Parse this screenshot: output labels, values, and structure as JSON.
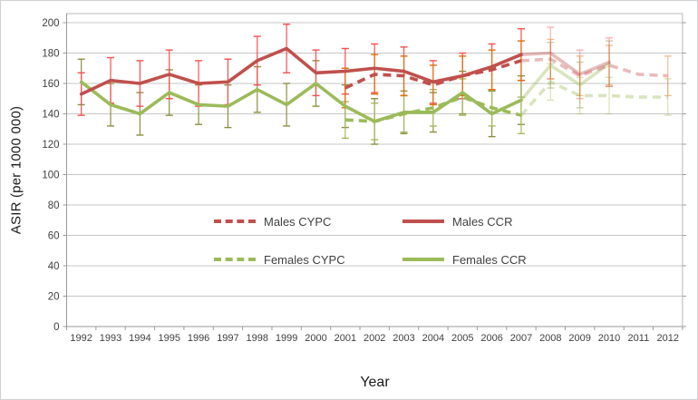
{
  "chart_data": {
    "type": "line",
    "title": "",
    "xlabel": "Year",
    "ylabel": "ASIR (per 1000 000)",
    "ylim": [
      0,
      200
    ],
    "ytick_step": 20,
    "yticks": [
      0,
      20,
      40,
      60,
      80,
      100,
      120,
      140,
      160,
      180,
      200
    ],
    "grid": true,
    "legend_position": "center",
    "x_categories": [
      1992,
      1993,
      1994,
      1995,
      1996,
      1997,
      1998,
      1999,
      2000,
      2001,
      2002,
      2003,
      2004,
      2005,
      2006,
      2007,
      2008,
      2009,
      2010,
      2011,
      2012
    ],
    "projection_opacity": 0.38,
    "series": [
      {
        "name": "Males CYPC",
        "style": "dashed",
        "color": "#c0504d",
        "error_bar_color": "#e36c0a",
        "observed": {
          "years": [
            2001,
            2002,
            2003,
            2004,
            2005,
            2006,
            2007
          ],
          "values": [
            157,
            166,
            165,
            159,
            165,
            169,
            175
          ],
          "err": [
            13,
            13,
            13,
            13,
            13,
            13,
            13
          ]
        },
        "projected": {
          "years": [
            2007,
            2008,
            2009,
            2010,
            2011,
            2012
          ],
          "values": [
            175,
            176,
            165,
            172,
            166,
            165
          ],
          "err": [
            0,
            13,
            13,
            13,
            0,
            13
          ]
        }
      },
      {
        "name": "Males CCR",
        "style": "solid",
        "color": "#c0504d",
        "error_bar_color": "#fb4d4d",
        "observed": {
          "years": [
            1992,
            1993,
            1994,
            1995,
            1996,
            1997,
            1998,
            1999,
            2000,
            2001,
            2002,
            2003,
            2004,
            2005,
            2006,
            2007
          ],
          "values": [
            153,
            162,
            160,
            166,
            160,
            161,
            175,
            183,
            167,
            168,
            170,
            168,
            161,
            165,
            171,
            179
          ],
          "err": [
            14,
            15,
            15,
            16,
            15,
            15,
            16,
            16,
            15,
            15,
            16,
            16,
            14,
            15,
            15,
            17
          ]
        },
        "projected": {
          "years": [
            2007,
            2008,
            2009,
            2010
          ],
          "values": [
            179,
            180,
            166,
            174
          ],
          "err": [
            0,
            17,
            16,
            16
          ]
        }
      },
      {
        "name": "Females CYPC",
        "style": "dashed",
        "color": "#9bbb59",
        "error_bar_color": "#a8b95f",
        "observed": {
          "years": [
            2001,
            2002,
            2003,
            2004,
            2005,
            2006,
            2007
          ],
          "values": [
            136,
            135,
            140,
            144,
            151,
            144,
            139
          ],
          "err": [
            12,
            12,
            12,
            12,
            12,
            12,
            12
          ]
        },
        "projected": {
          "years": [
            2007,
            2008,
            2009,
            2010,
            2011,
            2012
          ],
          "values": [
            139,
            161,
            152,
            152,
            151,
            151
          ],
          "err": [
            0,
            12,
            12,
            12,
            0,
            12
          ]
        }
      },
      {
        "name": "Females CCR",
        "style": "solid",
        "color": "#9bbb59",
        "error_bar_color": "#8c8f3e",
        "observed": {
          "years": [
            1992,
            1993,
            1994,
            1995,
            1996,
            1997,
            1998,
            1999,
            2000,
            2001,
            2002,
            2003,
            2004,
            2005,
            2006,
            2007
          ],
          "values": [
            161,
            146,
            140,
            154,
            146,
            145,
            156,
            146,
            160,
            145,
            135,
            141,
            141,
            154,
            140,
            149
          ],
          "err": [
            15,
            14,
            14,
            15,
            13,
            14,
            15,
            14,
            15,
            14,
            15,
            14,
            13,
            14,
            15,
            16
          ]
        },
        "projected": {
          "years": [
            2007,
            2008,
            2009,
            2010
          ],
          "values": [
            149,
            172,
            159,
            173
          ],
          "err": [
            0,
            15,
            15,
            15
          ]
        }
      }
    ],
    "colors": {
      "gridline": "#c6c6c6",
      "plot_border": "#b9b9b9",
      "axis": "#9a9a9a",
      "tick_label": "#3f3f3f"
    }
  }
}
